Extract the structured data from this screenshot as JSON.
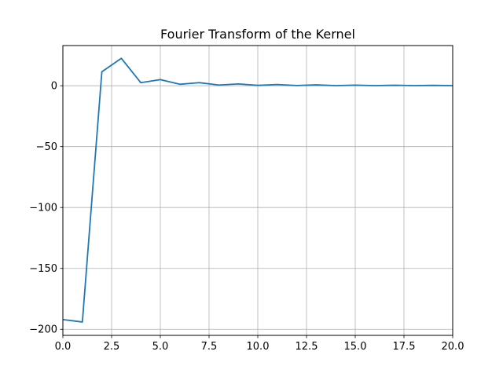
{
  "chart_data": {
    "type": "line",
    "title": "Fourier Transform of the Kernel",
    "xlabel": "",
    "ylabel": "",
    "xlim": [
      0,
      20
    ],
    "ylim": [
      -205,
      33
    ],
    "grid": true,
    "x_ticks": [
      0,
      2.5,
      5,
      7.5,
      10,
      12.5,
      15,
      17.5,
      20
    ],
    "x_tick_labels": [
      "0.0",
      "2.5",
      "5.0",
      "7.5",
      "10.0",
      "12.5",
      "15.0",
      "17.5",
      "20.0"
    ],
    "y_ticks": [
      0,
      -50,
      -100,
      -150,
      -200
    ],
    "y_tick_labels": [
      "0",
      "−50",
      "−100",
      "−150",
      "−200"
    ],
    "series": [
      {
        "color": "#1f77b4",
        "x": [
          0,
          1,
          2,
          3,
          4,
          5,
          6,
          7,
          8,
          9,
          10,
          11,
          12,
          13,
          14,
          15,
          16,
          17,
          18,
          19,
          20
        ],
        "y": [
          -192,
          -194,
          11.5,
          22.5,
          2.5,
          5,
          1.2,
          2.5,
          0.6,
          1.5,
          0.3,
          1,
          0.2,
          0.7,
          0.1,
          0.5,
          0.1,
          0.4,
          0.1,
          0.3,
          0.1
        ]
      }
    ]
  }
}
